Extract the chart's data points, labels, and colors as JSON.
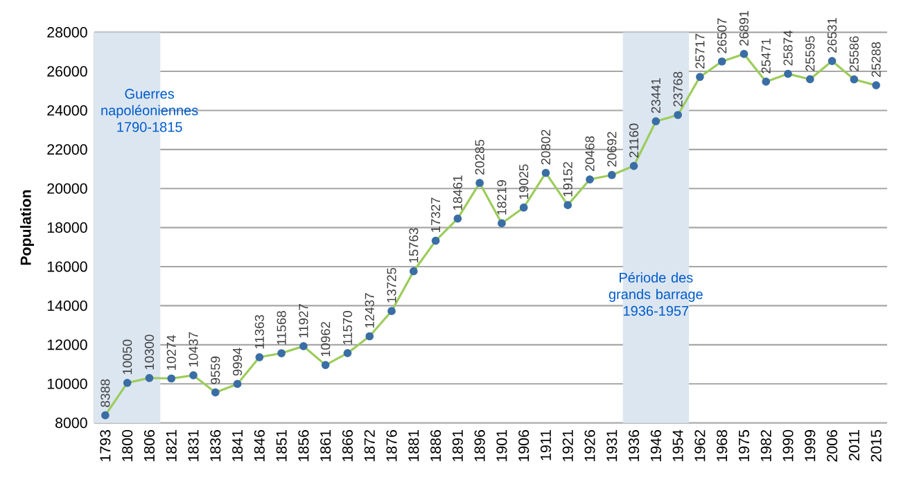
{
  "chart_data": {
    "type": "line",
    "ylabel": "Population",
    "categories": [
      "1793",
      "1800",
      "1806",
      "1821",
      "1831",
      "1836",
      "1841",
      "1846",
      "1851",
      "1856",
      "1861",
      "1866",
      "1872",
      "1876",
      "1881",
      "1886",
      "1891",
      "1896",
      "1901",
      "1906",
      "1911",
      "1921",
      "1926",
      "1931",
      "1936",
      "1946",
      "1954",
      "1962",
      "1968",
      "1975",
      "1982",
      "1990",
      "1999",
      "2006",
      "2011",
      "2015"
    ],
    "series": [
      {
        "color": "#9ccc5a",
        "values": [
          8388,
          10050,
          10300,
          10274,
          10437,
          9559,
          9994,
          11363,
          11568,
          11927,
          10962,
          11570,
          12437,
          13725,
          15763,
          17327,
          18461,
          20285,
          18219,
          19025,
          20802,
          19152,
          20468,
          20692,
          21160,
          23441,
          23768,
          25717,
          26507,
          26891,
          25471,
          25874,
          25595,
          26531,
          25586,
          25288
        ]
      }
    ],
    "marker": "circle",
    "ylim": [
      8000,
      28000
    ],
    "yticks": [
      8000,
      10000,
      12000,
      14000,
      16000,
      18000,
      20000,
      22000,
      24000,
      26000,
      28000
    ],
    "grid": "y",
    "data_labels": true,
    "bands": [
      {
        "axis": "x",
        "from": "1793",
        "to": "1806",
        "label": "Guerres napoléoniennes 1790-1815",
        "color": "#dce6f1"
      },
      {
        "axis": "x",
        "from": "1936",
        "to": "1954",
        "label": "Période des grands barrage 1936-1957",
        "color": "#dce6f1"
      }
    ]
  }
}
